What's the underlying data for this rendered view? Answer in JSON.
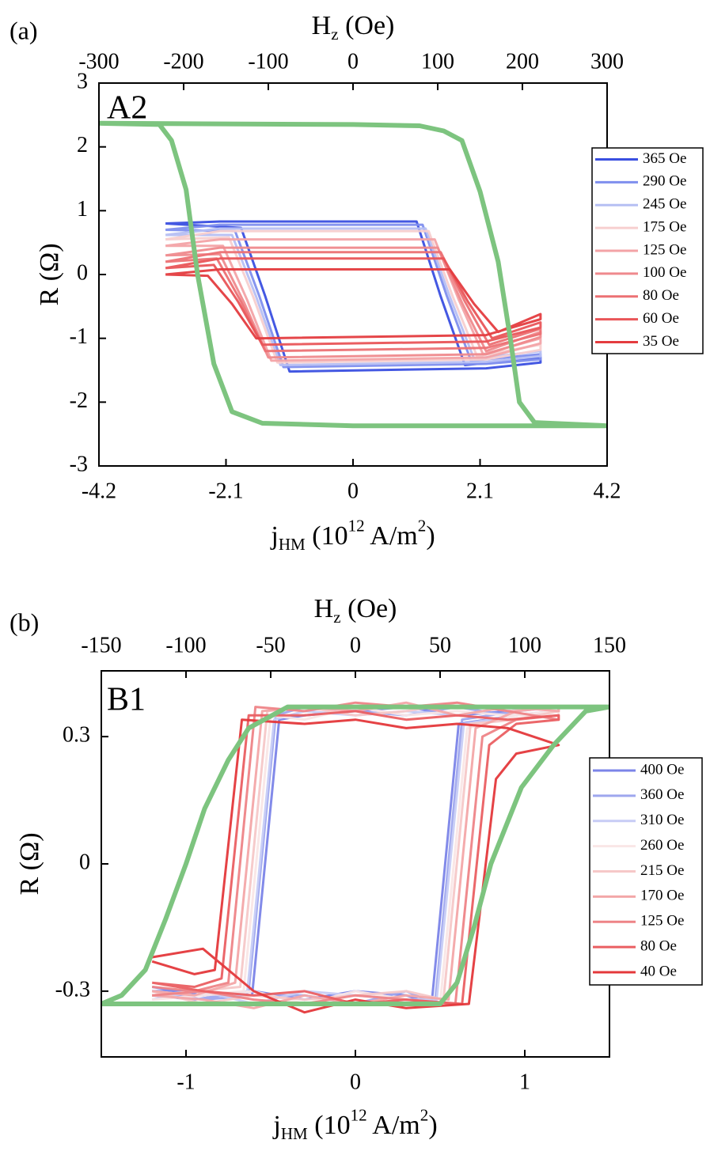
{
  "chart_data": [
    {
      "type": "line",
      "panel": "(a)",
      "inset_label": "A2",
      "x2label": [
        {
          "text": "H"
        },
        {
          "text": "z",
          "shift": "sub"
        },
        {
          "text": " (Oe)"
        }
      ],
      "xlabel": [
        {
          "text": "j"
        },
        {
          "text": "HM",
          "shift": "sub"
        },
        {
          "text": " (10"
        },
        {
          "text": "12",
          "shift": "sup"
        },
        {
          "text": " A/m"
        },
        {
          "text": "2",
          "shift": "sup"
        },
        {
          "text": ")"
        }
      ],
      "ylabel": "R (Ω)",
      "xlim": [
        -4.2,
        4.2
      ],
      "xticks": [
        -4.2,
        -2.1,
        0,
        2.1,
        4.2
      ],
      "x2lim": [
        -300,
        300
      ],
      "x2ticks": [
        -300,
        -200,
        -100,
        0,
        100,
        200,
        300
      ],
      "ylim": [
        -3,
        3
      ],
      "yticks": [
        -3,
        -2,
        -1,
        0,
        1,
        2,
        3
      ],
      "reference": {
        "color": "#7dc47f",
        "x": [
          -4.2,
          0,
          1.1,
          1.5,
          1.8,
          2.1,
          2.4,
          2.6,
          2.75,
          3.0,
          4.2,
          0,
          -1.5,
          -2.0,
          -2.3,
          -2.57,
          -2.76,
          -3.0,
          -3.2,
          -4.2
        ],
        "values": [
          2.37,
          2.35,
          2.33,
          2.25,
          2.1,
          1.3,
          0.2,
          -1.0,
          -2.0,
          -2.32,
          -2.37,
          -2.37,
          -2.33,
          -2.15,
          -1.4,
          0,
          1.33,
          2.1,
          2.35,
          2.37
        ]
      },
      "series": [
        {
          "name": "365 Oe",
          "color": "#3a4fe0",
          "x": [
            -3.1,
            -2.2,
            1.05,
            1.45,
            1.85,
            3.1,
            3.1,
            2.2,
            -1.05,
            -1.45,
            -1.85,
            -3.1
          ],
          "values": [
            0.8,
            0.83,
            0.83,
            -0.345,
            -1.42,
            -1.3,
            -1.38,
            -1.47,
            -1.52,
            -0.345,
            0.73,
            0.8
          ]
        },
        {
          "name": "290 Oe",
          "color": "#7f8fee",
          "x": [
            -3.1,
            -2.2,
            1.15,
            1.55,
            1.95,
            3.1,
            3.1,
            2.2,
            -1.15,
            -1.55,
            -1.95,
            -3.1
          ],
          "values": [
            0.7,
            0.78,
            0.78,
            -0.335,
            -1.35,
            -1.25,
            -1.33,
            -1.4,
            -1.45,
            -0.335,
            0.68,
            0.7
          ]
        },
        {
          "name": "245 Oe",
          "color": "#b6bff3",
          "x": [
            -3.1,
            -2.2,
            1.2,
            1.6,
            2.0,
            3.1,
            3.1,
            2.2,
            -1.2,
            -1.6,
            -2.0,
            -3.1
          ],
          "values": [
            0.62,
            0.72,
            0.72,
            -0.35,
            -1.32,
            -1.2,
            -1.28,
            -1.37,
            -1.42,
            -0.35,
            0.62,
            0.62
          ]
        },
        {
          "name": "175 Oe",
          "color": "#f7cfcf",
          "x": [
            -3.1,
            -2.2,
            1.25,
            1.65,
            2.05,
            3.1,
            3.1,
            2.2,
            -1.25,
            -1.65,
            -2.05,
            -3.1
          ],
          "values": [
            0.55,
            0.68,
            0.68,
            -0.35,
            -1.28,
            -1.1,
            -1.18,
            -1.33,
            -1.38,
            -0.35,
            0.58,
            0.55
          ]
        },
        {
          "name": "125 Oe",
          "color": "#f3a3a6",
          "x": [
            -3.1,
            -2.2,
            1.35,
            1.75,
            2.15,
            3.1,
            3.1,
            2.2,
            -1.35,
            -1.75,
            -2.15,
            -3.1
          ],
          "values": [
            0.45,
            0.55,
            0.55,
            -0.4,
            -1.25,
            -1.0,
            -1.08,
            -1.3,
            -1.35,
            -0.4,
            0.45,
            0.45
          ]
        },
        {
          "name": "100 Oe",
          "color": "#ef8a8d",
          "x": [
            -3.1,
            -2.2,
            1.4,
            1.8,
            2.2,
            3.1,
            3.1,
            2.2,
            -1.4,
            -1.8,
            -2.2,
            -3.1
          ],
          "values": [
            0.3,
            0.42,
            0.42,
            -0.44,
            -1.2,
            -0.9,
            -0.98,
            -1.25,
            -1.3,
            -0.44,
            0.32,
            0.3
          ]
        },
        {
          "name": "80 Oe",
          "color": "#ec7174",
          "x": [
            -3.1,
            -2.2,
            1.45,
            1.85,
            2.25,
            3.1,
            3.1,
            2.2,
            -1.45,
            -1.85,
            -2.25,
            -3.1
          ],
          "values": [
            0.2,
            0.35,
            0.35,
            -0.425,
            -1.1,
            -0.85,
            -0.93,
            -1.15,
            -1.2,
            -0.425,
            0.25,
            0.2
          ]
        },
        {
          "name": "60 Oe",
          "color": "#e95558",
          "x": [
            -3.1,
            -2.2,
            1.5,
            1.9,
            2.3,
            3.1,
            3.1,
            2.2,
            -1.5,
            -1.9,
            -2.3,
            -3.1
          ],
          "values": [
            0.1,
            0.25,
            0.25,
            -0.425,
            -1.0,
            -0.75,
            -0.83,
            -1.05,
            -1.1,
            -0.425,
            0.15,
            0.1
          ]
        },
        {
          "name": "35 Oe",
          "color": "#e43c3f",
          "x": [
            -3.1,
            -2.2,
            1.6,
            2.0,
            2.4,
            3.1,
            3.1,
            2.2,
            -1.6,
            -2.0,
            -2.4,
            -3.1
          ],
          "values": [
            0.0,
            0.08,
            0.08,
            -0.46,
            -0.9,
            -0.62,
            -0.7,
            -0.95,
            -1.0,
            -0.46,
            -0.02,
            0.0
          ]
        }
      ]
    },
    {
      "type": "line",
      "panel": "(b)",
      "inset_label": "B1",
      "x2label": [
        {
          "text": "H"
        },
        {
          "text": "z",
          "shift": "sub"
        },
        {
          "text": " (Oe)"
        }
      ],
      "xlabel": [
        {
          "text": "j"
        },
        {
          "text": "HM",
          "shift": "sub"
        },
        {
          "text": " (10"
        },
        {
          "text": "12",
          "shift": "sup"
        },
        {
          "text": " A/m"
        },
        {
          "text": "2",
          "shift": "sup"
        },
        {
          "text": ")"
        }
      ],
      "ylabel": "R (Ω)",
      "xlim": [
        -1.5,
        1.5
      ],
      "xticks": [
        -1,
        0,
        1
      ],
      "x2lim": [
        -150,
        150
      ],
      "x2ticks": [
        -150,
        -100,
        -50,
        0,
        50,
        100,
        150
      ],
      "ylim": [
        -0.455,
        0.455
      ],
      "yticks": [
        -0.3,
        0,
        0.3
      ],
      "reference": {
        "color": "#7dc47f",
        "x": [
          -1.5,
          0.5,
          0.6,
          0.7,
          0.8,
          0.98,
          1.17,
          1.36,
          1.5,
          -0.4,
          -0.63,
          -0.75,
          -0.89,
          -1.0,
          -1.12,
          -1.24,
          -1.38,
          -1.5
        ],
        "values": [
          -0.33,
          -0.33,
          -0.28,
          -0.15,
          0.0,
          0.18,
          0.28,
          0.36,
          0.37,
          0.37,
          0.32,
          0.245,
          0.13,
          0.0,
          -0.13,
          -0.25,
          -0.31,
          -0.33
        ]
      },
      "series": [
        {
          "name": "400 Oe",
          "color": "#7b84e8",
          "x": [
            -1.2,
            -0.9,
            -0.6,
            -0.3,
            0,
            0.3,
            0.45,
            0.61,
            0.95,
            1.2,
            1.2,
            0.9,
            0.6,
            0.3,
            0,
            -0.3,
            -0.45,
            -0.61,
            -0.95,
            -1.2
          ],
          "values": [
            -0.29,
            -0.31,
            -0.3,
            -0.32,
            -0.3,
            -0.31,
            -0.33,
            0.33,
            0.35,
            0.36,
            0.37,
            0.36,
            0.35,
            0.37,
            0.36,
            0.35,
            0.34,
            -0.31,
            -0.3,
            -0.3
          ]
        },
        {
          "name": "360 Oe",
          "color": "#9ea6ee",
          "x": [
            -1.2,
            -0.9,
            -0.6,
            -0.3,
            0,
            0.3,
            0.47,
            0.63,
            0.95,
            1.2,
            1.2,
            0.9,
            0.6,
            0.3,
            0,
            -0.3,
            -0.47,
            -0.63,
            -0.95,
            -1.2
          ],
          "values": [
            -0.3,
            -0.32,
            -0.31,
            -0.31,
            -0.33,
            -0.3,
            -0.33,
            0.34,
            0.36,
            0.37,
            0.36,
            0.35,
            0.37,
            0.35,
            0.36,
            0.37,
            0.35,
            -0.3,
            -0.32,
            -0.31
          ]
        },
        {
          "name": "310 Oe",
          "color": "#c7ccf5",
          "x": [
            -1.2,
            -0.9,
            -0.6,
            -0.3,
            0,
            0.3,
            0.48,
            0.64,
            0.95,
            1.2,
            1.2,
            0.9,
            0.6,
            0.3,
            0,
            -0.3,
            -0.48,
            -0.64,
            -0.95,
            -1.2
          ],
          "values": [
            -0.31,
            -0.3,
            -0.33,
            -0.3,
            -0.31,
            -0.32,
            -0.32,
            0.33,
            0.35,
            0.36,
            0.37,
            0.37,
            0.35,
            0.36,
            0.35,
            0.36,
            0.34,
            -0.31,
            -0.3,
            -0.32
          ]
        },
        {
          "name": "260 Oe",
          "color": "#f9e6e6",
          "x": [
            -1.2,
            -0.9,
            -0.6,
            -0.3,
            0,
            0.3,
            0.5,
            0.66,
            0.95,
            1.2,
            1.2,
            0.9,
            0.6,
            0.3,
            0,
            -0.3,
            -0.5,
            -0.66,
            -0.95,
            -1.2
          ],
          "values": [
            -0.32,
            -0.31,
            -0.3,
            -0.33,
            -0.3,
            -0.32,
            -0.33,
            0.32,
            0.35,
            0.35,
            0.36,
            0.35,
            0.36,
            0.35,
            0.37,
            0.34,
            0.35,
            -0.3,
            -0.31,
            -0.3
          ]
        },
        {
          "name": "215 Oe",
          "color": "#f6c8c8",
          "x": [
            -1.2,
            -0.9,
            -0.6,
            -0.3,
            0,
            0.3,
            0.52,
            0.68,
            0.95,
            1.2,
            1.2,
            0.9,
            0.6,
            0.3,
            0,
            -0.3,
            -0.52,
            -0.68,
            -0.95,
            -1.2
          ],
          "values": [
            -0.3,
            -0.33,
            -0.31,
            -0.32,
            -0.31,
            -0.3,
            -0.32,
            0.33,
            0.34,
            0.36,
            0.37,
            0.36,
            0.38,
            0.36,
            0.35,
            0.37,
            0.36,
            -0.29,
            -0.3,
            -0.31
          ]
        },
        {
          "name": "170 Oe",
          "color": "#f3a7a8",
          "x": [
            -1.2,
            -0.9,
            -0.6,
            -0.3,
            0,
            0.3,
            0.55,
            0.71,
            0.95,
            1.2,
            1.2,
            0.9,
            0.6,
            0.3,
            0,
            -0.3,
            -0.55,
            -0.71,
            -0.95,
            -1.2
          ],
          "values": [
            -0.31,
            -0.32,
            -0.34,
            -0.31,
            -0.33,
            -0.31,
            -0.32,
            0.32,
            0.36,
            0.37,
            0.36,
            0.37,
            0.35,
            0.38,
            0.36,
            0.37,
            0.36,
            -0.28,
            -0.31,
            -0.3
          ]
        },
        {
          "name": "125 Oe",
          "color": "#ee8487",
          "x": [
            -1.2,
            -0.9,
            -0.6,
            -0.3,
            0,
            0.3,
            0.59,
            0.75,
            0.95,
            1.2,
            1.2,
            0.9,
            0.6,
            0.3,
            0,
            -0.3,
            -0.59,
            -0.75,
            -0.95,
            -1.2
          ],
          "values": [
            -0.31,
            -0.3,
            -0.32,
            -0.33,
            -0.31,
            -0.32,
            -0.33,
            0.3,
            0.34,
            0.35,
            0.34,
            0.36,
            0.38,
            0.37,
            0.38,
            0.36,
            0.37,
            -0.28,
            -0.3,
            -0.29
          ]
        },
        {
          "name": "80 Oe",
          "color": "#ea5f62",
          "x": [
            -1.2,
            -0.9,
            -0.6,
            -0.3,
            0,
            0.3,
            0.63,
            0.79,
            0.95,
            1.2,
            1.2,
            0.9,
            0.6,
            0.3,
            0,
            -0.3,
            -0.63,
            -0.79,
            -0.95,
            -1.2
          ],
          "values": [
            -0.28,
            -0.3,
            -0.31,
            -0.3,
            -0.33,
            -0.32,
            -0.33,
            0.28,
            0.33,
            0.34,
            0.35,
            0.34,
            0.35,
            0.34,
            0.36,
            0.35,
            0.35,
            -0.27,
            -0.29,
            -0.28
          ]
        },
        {
          "name": "40 Oe",
          "color": "#e4383b",
          "x": [
            -1.2,
            -0.9,
            -0.6,
            -0.3,
            0,
            0.3,
            0.67,
            0.83,
            0.95,
            1.2,
            1.2,
            0.9,
            0.6,
            0.3,
            0,
            -0.3,
            -0.67,
            -0.83,
            -0.95,
            -1.2
          ],
          "values": [
            -0.22,
            -0.2,
            -0.3,
            -0.35,
            -0.32,
            -0.34,
            -0.33,
            0.2,
            0.26,
            0.28,
            0.28,
            0.32,
            0.33,
            0.32,
            0.34,
            0.33,
            0.34,
            -0.25,
            -0.26,
            -0.23
          ]
        }
      ]
    }
  ]
}
